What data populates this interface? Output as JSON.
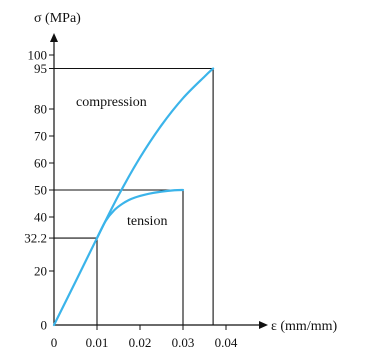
{
  "chart_data": {
    "type": "line",
    "title": "",
    "xlabel": "ε (mm/mm)",
    "ylabel": "σ (MPa)",
    "xlim": [
      0,
      0.045
    ],
    "ylim": [
      0,
      105
    ],
    "x_ticks": [
      0,
      0.01,
      0.02,
      0.03,
      0.04
    ],
    "x_tick_labels": [
      "0",
      "0.01",
      "0.02",
      "0.03",
      "0.04"
    ],
    "y_ticks": [
      0,
      20,
      32.2,
      40,
      50,
      60,
      70,
      80,
      95,
      100
    ],
    "y_tick_labels": [
      "0",
      "20",
      "32.2",
      "40",
      "50",
      "60",
      "70",
      "80",
      "95",
      "100"
    ],
    "grid": false,
    "legend": "none",
    "line_color": "#3bb4ea",
    "series": [
      {
        "name": "compression",
        "x": [
          0,
          0.005,
          0.01,
          0.015,
          0.02,
          0.025,
          0.03,
          0.035,
          0.037
        ],
        "y": [
          0,
          16,
          32.2,
          48,
          62,
          74,
          84,
          92,
          95
        ]
      },
      {
        "name": "tension",
        "x": [
          0.01,
          0.012,
          0.014,
          0.016,
          0.018,
          0.02,
          0.022,
          0.025,
          0.028,
          0.03
        ],
        "y": [
          32.2,
          38.5,
          42.5,
          45.0,
          46.7,
          47.8,
          48.6,
          49.4,
          49.9,
          50
        ]
      }
    ],
    "reference_lines": [
      {
        "x": 0.01,
        "y": 32.2
      },
      {
        "x": 0.03,
        "y": 50
      },
      {
        "x": 0.037,
        "y": 95
      }
    ]
  }
}
